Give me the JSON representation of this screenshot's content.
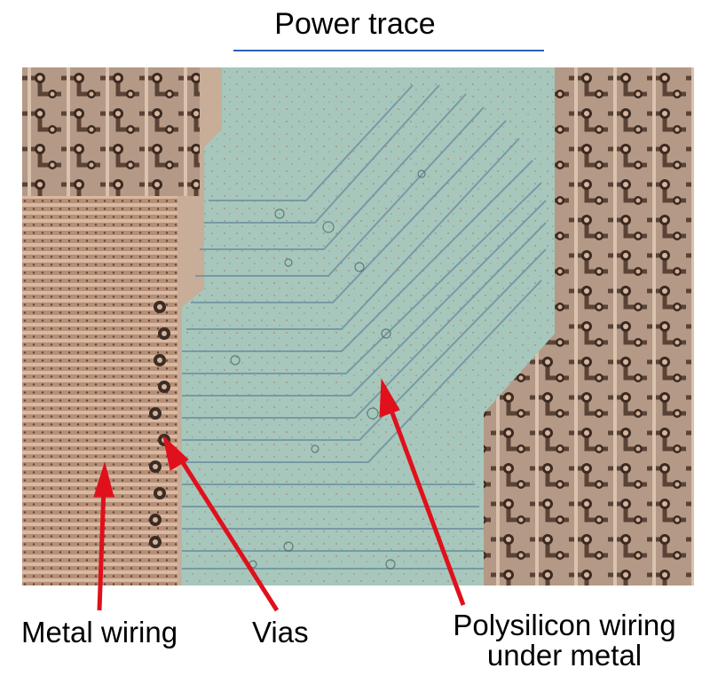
{
  "title": "Power trace",
  "labels": {
    "metal_wiring": "Metal wiring",
    "vias": "Vias",
    "polysilicon_line1": "Polysilicon wiring",
    "polysilicon_line2": "under metal"
  },
  "colors": {
    "rule": "#2f5fb5",
    "arrow": "#e0101c",
    "metal": "#c9a98e",
    "trace": "#9ec3b8"
  }
}
